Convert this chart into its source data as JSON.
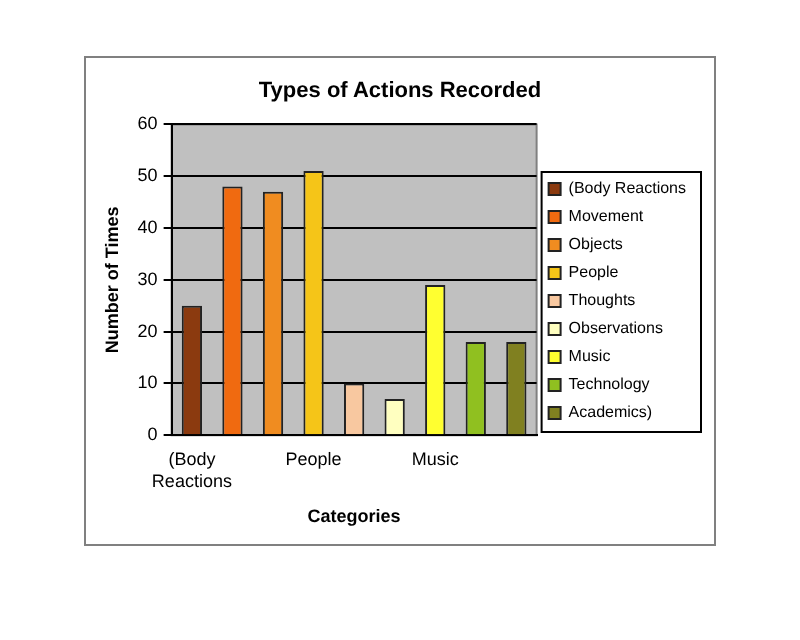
{
  "chart_data": {
    "type": "bar",
    "title": "Types of Actions Recorded",
    "xlabel": "Categories",
    "ylabel": "Number of Times",
    "categories": [
      "(Body Reactions",
      null,
      null,
      "People",
      null,
      null,
      "Music",
      null,
      null
    ],
    "series": [
      {
        "name": "(Body Reactions",
        "color": "#8b3a0f",
        "values": [
          25,
          null,
          null,
          null,
          null,
          null,
          null,
          null,
          null
        ]
      },
      {
        "name": "Movement",
        "color": "#f06a10",
        "values": [
          null,
          48,
          null,
          null,
          null,
          null,
          null,
          null,
          null
        ]
      },
      {
        "name": "Objects",
        "color": "#f08c20",
        "values": [
          null,
          null,
          47,
          null,
          null,
          null,
          null,
          null,
          null
        ]
      },
      {
        "name": "People",
        "color": "#f5c518",
        "values": [
          null,
          null,
          null,
          51,
          null,
          null,
          null,
          null,
          null
        ]
      },
      {
        "name": "Thoughts",
        "color": "#f8c8a0",
        "values": [
          null,
          null,
          null,
          null,
          10,
          null,
          null,
          null,
          null
        ]
      },
      {
        "name": "Observations",
        "color": "#ffffc0",
        "values": [
          null,
          null,
          null,
          null,
          null,
          7,
          null,
          null,
          null
        ]
      },
      {
        "name": "Music",
        "color": "#ffff30",
        "values": [
          null,
          null,
          null,
          null,
          null,
          null,
          29,
          null,
          null
        ]
      },
      {
        "name": "Technology",
        "color": "#90c020",
        "values": [
          null,
          null,
          null,
          null,
          null,
          null,
          null,
          18,
          null
        ]
      },
      {
        "name": "Academics)",
        "color": "#808020",
        "values": [
          null,
          null,
          null,
          null,
          null,
          null,
          null,
          null,
          18
        ]
      }
    ],
    "ylim": [
      0,
      60
    ],
    "yticks": [
      0,
      10,
      20,
      30,
      40,
      50,
      60
    ],
    "grid": "y",
    "legend": "right"
  }
}
